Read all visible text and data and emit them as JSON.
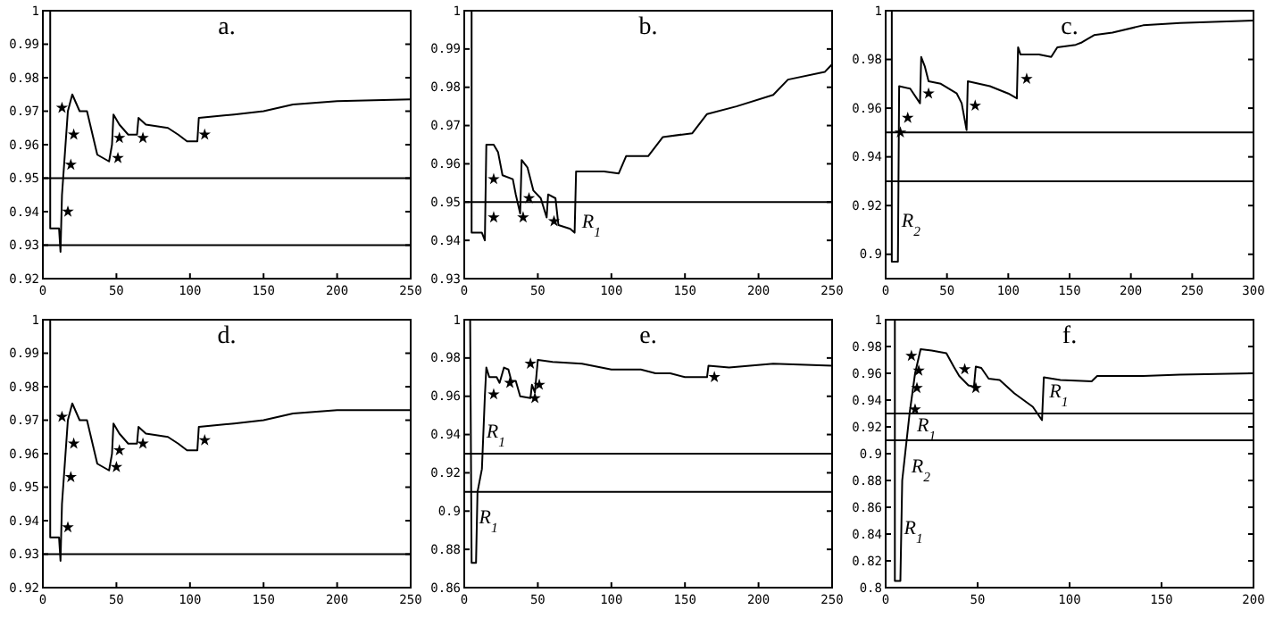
{
  "chart_data": [
    {
      "type": "line",
      "title": "a.",
      "xlim": [
        0,
        250
      ],
      "ylim": [
        0.92,
        1
      ],
      "xticks": [
        0,
        50,
        100,
        150,
        200,
        250
      ],
      "yticks": [
        0.92,
        0.93,
        0.94,
        0.95,
        0.96,
        0.97,
        0.98,
        0.99,
        1
      ],
      "ref_lines": [
        {
          "axis": "y",
          "value": 0.95
        },
        {
          "axis": "y",
          "value": 0.93
        }
      ],
      "series": [
        {
          "type": "line",
          "color": "#000000",
          "x": [
            5,
            5,
            11,
            12,
            13,
            17,
            20,
            25,
            30,
            37,
            45,
            47,
            48,
            52,
            58,
            64,
            65,
            70,
            85,
            92,
            98,
            105,
            106,
            130,
            150,
            170,
            200,
            250
          ],
          "values": [
            1,
            0.935,
            0.935,
            0.928,
            0.945,
            0.97,
            0.975,
            0.97,
            0.97,
            0.957,
            0.955,
            0.96,
            0.969,
            0.966,
            0.963,
            0.963,
            0.968,
            0.966,
            0.965,
            0.963,
            0.961,
            0.961,
            0.968,
            0.969,
            0.97,
            0.972,
            0.973,
            0.9735
          ]
        },
        {
          "type": "scatter",
          "marker": "star",
          "color": "#000000",
          "x": [
            13,
            17,
            19,
            21,
            51,
            52,
            68,
            110
          ],
          "values": [
            0.971,
            0.94,
            0.954,
            0.963,
            0.956,
            0.962,
            0.962,
            0.963
          ]
        }
      ]
    },
    {
      "type": "line",
      "title": "b.",
      "xlim": [
        0,
        250
      ],
      "ylim": [
        0.93,
        1
      ],
      "xticks": [
        0,
        50,
        100,
        150,
        200,
        250
      ],
      "yticks": [
        0.93,
        0.94,
        0.95,
        0.96,
        0.97,
        0.98,
        0.99,
        1
      ],
      "ref_lines": [
        {
          "axis": "y",
          "value": 0.95
        }
      ],
      "annotations": [
        {
          "text": "R$_{1}$",
          "x": 80,
          "y": 0.945
        }
      ],
      "series": [
        {
          "type": "line",
          "color": "#000000",
          "x": [
            5,
            5,
            12,
            14,
            15,
            20,
            23,
            26,
            33,
            35,
            38,
            39,
            43,
            47,
            52,
            56,
            57,
            62,
            64,
            72,
            75,
            76,
            95,
            105,
            110,
            125,
            135,
            155,
            165,
            185,
            210,
            220,
            245,
            250
          ],
          "values": [
            1,
            0.942,
            0.942,
            0.94,
            0.965,
            0.965,
            0.963,
            0.957,
            0.956,
            0.952,
            0.947,
            0.961,
            0.959,
            0.953,
            0.951,
            0.946,
            0.952,
            0.951,
            0.944,
            0.943,
            0.942,
            0.958,
            0.958,
            0.9575,
            0.962,
            0.962,
            0.967,
            0.968,
            0.973,
            0.975,
            0.978,
            0.982,
            0.984,
            0.986
          ]
        },
        {
          "type": "scatter",
          "marker": "star",
          "color": "#000000",
          "x": [
            20,
            20,
            40,
            44,
            61
          ],
          "values": [
            0.956,
            0.946,
            0.946,
            0.951,
            0.945
          ]
        }
      ]
    },
    {
      "type": "line",
      "title": "c.",
      "xlim": [
        0,
        300
      ],
      "ylim": [
        0.89,
        1
      ],
      "xticks": [
        0,
        50,
        100,
        150,
        200,
        250,
        300
      ],
      "yticks": [
        0.9,
        0.92,
        0.94,
        0.96,
        0.98,
        1
      ],
      "ref_lines": [
        {
          "axis": "y",
          "value": 0.95
        },
        {
          "axis": "y",
          "value": 0.93
        }
      ],
      "annotations": [
        {
          "text": "R$_{2}$",
          "x": 13,
          "y": 0.914
        }
      ],
      "series": [
        {
          "type": "line",
          "color": "#000000",
          "x": [
            5,
            5,
            10,
            11,
            20,
            28,
            29,
            32,
            35,
            45,
            58,
            62,
            66,
            67,
            85,
            100,
            107,
            108,
            110,
            125,
            135,
            140,
            155,
            160,
            170,
            185,
            210,
            240,
            300
          ],
          "values": [
            1,
            0.897,
            0.897,
            0.969,
            0.968,
            0.962,
            0.981,
            0.977,
            0.971,
            0.97,
            0.966,
            0.962,
            0.951,
            0.971,
            0.969,
            0.966,
            0.964,
            0.985,
            0.982,
            0.982,
            0.981,
            0.985,
            0.986,
            0.987,
            0.99,
            0.991,
            0.994,
            0.995,
            0.996
          ]
        },
        {
          "type": "scatter",
          "marker": "star",
          "color": "#000000",
          "x": [
            12,
            18,
            35,
            73,
            115
          ],
          "values": [
            0.95,
            0.956,
            0.966,
            0.961,
            0.972
          ]
        }
      ]
    },
    {
      "type": "line",
      "title": "d.",
      "xlim": [
        0,
        250
      ],
      "ylim": [
        0.92,
        1
      ],
      "xticks": [
        0,
        50,
        100,
        150,
        200,
        250
      ],
      "yticks": [
        0.92,
        0.93,
        0.94,
        0.95,
        0.96,
        0.97,
        0.98,
        0.99,
        1
      ],
      "ref_lines": [
        {
          "axis": "y",
          "value": 0.93
        }
      ],
      "series": [
        {
          "type": "line",
          "color": "#000000",
          "x": [
            5,
            5,
            11,
            12,
            13,
            17,
            20,
            25,
            30,
            37,
            45,
            47,
            48,
            52,
            58,
            64,
            65,
            70,
            85,
            92,
            98,
            105,
            106,
            130,
            150,
            170,
            200,
            250
          ],
          "values": [
            1,
            0.935,
            0.935,
            0.928,
            0.945,
            0.97,
            0.975,
            0.97,
            0.97,
            0.957,
            0.955,
            0.96,
            0.969,
            0.966,
            0.963,
            0.963,
            0.968,
            0.966,
            0.965,
            0.963,
            0.961,
            0.961,
            0.968,
            0.969,
            0.97,
            0.972,
            0.973,
            0.973
          ]
        },
        {
          "type": "scatter",
          "marker": "star",
          "color": "#000000",
          "x": [
            13,
            17,
            19,
            21,
            50,
            52,
            68,
            110
          ],
          "values": [
            0.971,
            0.938,
            0.953,
            0.963,
            0.956,
            0.961,
            0.963,
            0.964
          ]
        }
      ]
    },
    {
      "type": "line",
      "title": "e.",
      "xlim": [
        0,
        250
      ],
      "ylim": [
        0.86,
        1
      ],
      "xticks": [
        0,
        50,
        100,
        150,
        200,
        250
      ],
      "yticks": [
        0.86,
        0.88,
        0.9,
        0.92,
        0.94,
        0.96,
        0.98,
        1
      ],
      "ref_lines": [
        {
          "axis": "y",
          "value": 0.93
        },
        {
          "axis": "y",
          "value": 0.91
        }
      ],
      "annotations": [
        {
          "text": "R$_{1}$",
          "x": 15,
          "y": 0.942
        },
        {
          "text": "R$_{1}$",
          "x": 10,
          "y": 0.897
        }
      ],
      "series": [
        {
          "type": "line",
          "color": "#000000",
          "x": [
            4,
            5,
            8,
            9,
            12,
            14,
            15,
            17,
            22,
            24,
            27,
            30,
            32,
            35,
            38,
            45,
            46,
            48,
            50,
            60,
            80,
            100,
            120,
            130,
            140,
            150,
            165,
            166,
            180,
            210,
            250
          ],
          "values": [
            1,
            0.873,
            0.873,
            0.91,
            0.922,
            0.96,
            0.975,
            0.97,
            0.97,
            0.967,
            0.975,
            0.974,
            0.968,
            0.968,
            0.96,
            0.959,
            0.966,
            0.962,
            0.979,
            0.978,
            0.977,
            0.974,
            0.974,
            0.972,
            0.972,
            0.97,
            0.97,
            0.976,
            0.975,
            0.977,
            0.976
          ]
        },
        {
          "type": "scatter",
          "marker": "star",
          "color": "#000000",
          "x": [
            20,
            31,
            45,
            48,
            51,
            170
          ],
          "values": [
            0.961,
            0.967,
            0.977,
            0.959,
            0.966,
            0.97
          ]
        }
      ]
    },
    {
      "type": "line",
      "title": "f.",
      "xlim": [
        0,
        200
      ],
      "ylim": [
        0.8,
        1
      ],
      "xticks": [
        0,
        50,
        100,
        150,
        200
      ],
      "yticks": [
        0.8,
        0.82,
        0.84,
        0.86,
        0.88,
        0.9,
        0.92,
        0.94,
        0.96,
        0.98,
        1
      ],
      "ref_lines": [
        {
          "axis": "y",
          "value": 0.93
        },
        {
          "axis": "y",
          "value": 0.91
        }
      ],
      "annotations": [
        {
          "text": "R$_{1}$",
          "x": 89,
          "y": 0.947
        },
        {
          "text": "R$_{1}$",
          "x": 17,
          "y": 0.922
        },
        {
          "text": "R$_{2}$",
          "x": 14,
          "y": 0.891
        },
        {
          "text": "R$_{1}$",
          "x": 10,
          "y": 0.845
        }
      ],
      "series": [
        {
          "type": "line",
          "color": "#000000",
          "x": [
            5,
            5,
            8,
            9,
            13,
            16,
            19,
            25,
            33,
            37,
            40,
            45,
            48,
            49,
            52,
            56,
            62,
            70,
            80,
            85,
            86,
            95,
            112,
            115,
            140,
            160,
            200
          ],
          "values": [
            1,
            0.805,
            0.805,
            0.88,
            0.93,
            0.96,
            0.978,
            0.977,
            0.975,
            0.965,
            0.958,
            0.951,
            0.95,
            0.965,
            0.964,
            0.956,
            0.955,
            0.945,
            0.935,
            0.925,
            0.957,
            0.955,
            0.954,
            0.958,
            0.958,
            0.959,
            0.96
          ]
        },
        {
          "type": "scatter",
          "marker": "star",
          "color": "#000000",
          "x": [
            14,
            16,
            17,
            18,
            43,
            49
          ],
          "values": [
            0.973,
            0.933,
            0.949,
            0.962,
            0.963,
            0.949
          ]
        }
      ]
    }
  ]
}
